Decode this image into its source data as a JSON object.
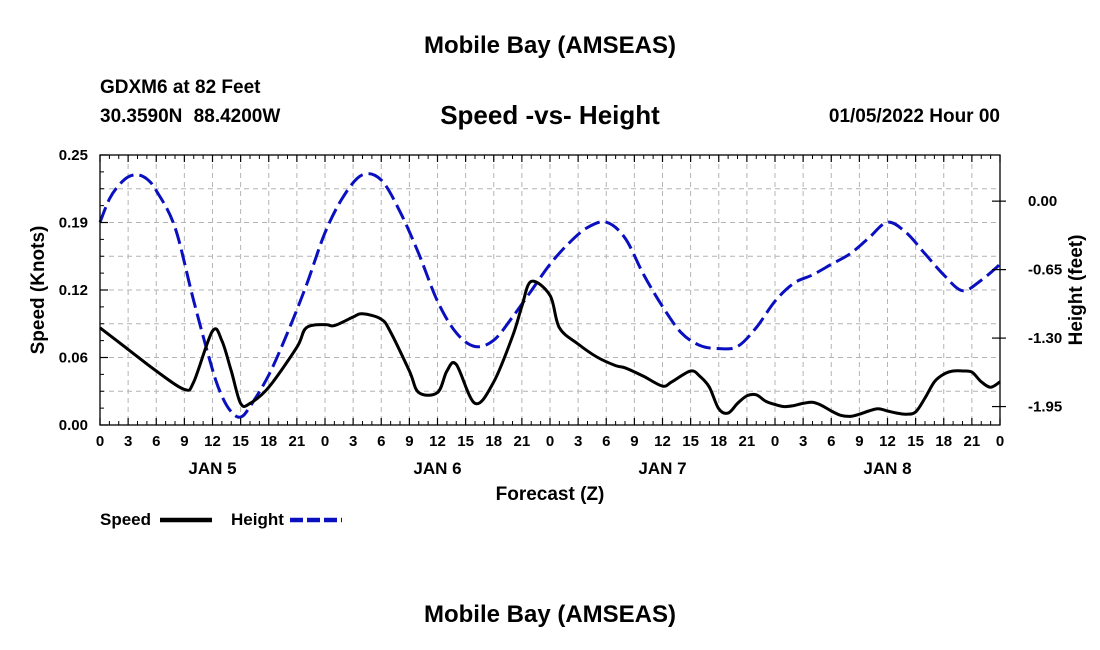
{
  "header": {
    "title": "Mobile Bay (AMSEAS)",
    "station": "GDXM6 at 82 Feet",
    "coords": "30.3590N 88.4200W",
    "date": "01/05/2022 Hour 00"
  },
  "footer": {
    "title": "Mobile Bay (AMSEAS)"
  },
  "chart_data": {
    "type": "line",
    "title": "Speed -vs- Height",
    "xlabel": "Forecast (Z)",
    "ylabel": "Speed (Knots)",
    "y2label": "Height (feet)",
    "grid": true,
    "legend_position": "bottom-left",
    "x_tick_labels": [
      "0",
      "3",
      "6",
      "9",
      "12",
      "15",
      "18",
      "21",
      "0",
      "3",
      "6",
      "9",
      "12",
      "15",
      "18",
      "21",
      "0",
      "3",
      "6",
      "9",
      "12",
      "15",
      "18",
      "21",
      "0",
      "3",
      "6",
      "9",
      "12",
      "15",
      "18",
      "21",
      "0"
    ],
    "day_labels": [
      {
        "label": "JAN 5",
        "hour": 12
      },
      {
        "label": "JAN 6",
        "hour": 36
      },
      {
        "label": "JAN 7",
        "hour": 60
      },
      {
        "label": "JAN 8",
        "hour": 84
      }
    ],
    "xlim": [
      0,
      96
    ],
    "ylim": [
      0,
      0.25
    ],
    "y_ticks": [
      "0.00",
      "0.06",
      "0.12",
      "0.19",
      "0.25"
    ],
    "y2lim": [
      -2.125,
      0.438
    ],
    "y2_ticks": [
      "-1.95",
      "-1.30",
      "-0.65",
      "0.00"
    ],
    "legend": [
      {
        "label": "Speed",
        "color": "#000000",
        "dash": "solid"
      },
      {
        "label": "Height",
        "color": "#0a10c0",
        "dash": "dashed"
      }
    ],
    "series": [
      {
        "name": "Speed",
        "axis": "left",
        "color": "#000000",
        "x": [
          0,
          3,
          6,
          9,
          10,
          12,
          13,
          14,
          15,
          16,
          18,
          21,
          22,
          24,
          25,
          27,
          28,
          30,
          31,
          33,
          34,
          36,
          37,
          38,
          40,
          42,
          44,
          45,
          46,
          48,
          49,
          51,
          53,
          55,
          56,
          58,
          60,
          61,
          63,
          64,
          65,
          66,
          67,
          68,
          69,
          70,
          71,
          72,
          73,
          74,
          75,
          76,
          77,
          78,
          79,
          80,
          81,
          82,
          83,
          84,
          85,
          86,
          87,
          88,
          89,
          90,
          91,
          92,
          93,
          94,
          95,
          96
        ],
        "values": [
          0.09,
          0.07,
          0.05,
          0.033,
          0.04,
          0.087,
          0.078,
          0.05,
          0.02,
          0.02,
          0.035,
          0.072,
          0.09,
          0.093,
          0.092,
          0.1,
          0.103,
          0.098,
          0.086,
          0.05,
          0.03,
          0.03,
          0.05,
          0.056,
          0.02,
          0.04,
          0.082,
          0.11,
          0.133,
          0.12,
          0.09,
          0.075,
          0.063,
          0.055,
          0.053,
          0.045,
          0.036,
          0.04,
          0.05,
          0.045,
          0.035,
          0.015,
          0.011,
          0.02,
          0.027,
          0.028,
          0.022,
          0.019,
          0.017,
          0.018,
          0.02,
          0.021,
          0.018,
          0.013,
          0.009,
          0.008,
          0.01,
          0.013,
          0.015,
          0.013,
          0.011,
          0.01,
          0.012,
          0.025,
          0.04,
          0.047,
          0.05,
          0.05,
          0.049,
          0.04,
          0.035,
          0.04
        ]
      },
      {
        "name": "Height",
        "axis": "right",
        "color": "#0a10c0",
        "x": [
          0,
          1,
          2,
          3,
          4,
          5,
          6,
          8,
          10,
          12,
          13,
          14,
          15,
          16,
          18,
          20,
          22,
          24,
          26,
          28,
          30,
          32,
          34,
          36,
          38,
          40,
          42,
          44,
          46,
          48,
          50,
          52,
          54,
          56,
          58,
          60,
          62,
          64,
          66,
          68,
          70,
          72,
          74,
          76,
          78,
          80,
          82,
          84,
          86,
          88,
          90,
          92,
          94,
          96
        ],
        "values": [
          -0.2,
          0.02,
          0.15,
          0.23,
          0.25,
          0.21,
          0.1,
          -0.25,
          -0.95,
          -1.6,
          -1.85,
          -2.0,
          -2.05,
          -1.95,
          -1.65,
          -1.25,
          -0.8,
          -0.3,
          0.05,
          0.25,
          0.2,
          -0.1,
          -0.5,
          -0.95,
          -1.25,
          -1.38,
          -1.32,
          -1.1,
          -0.85,
          -0.6,
          -0.4,
          -0.25,
          -0.2,
          -0.35,
          -0.7,
          -1.0,
          -1.25,
          -1.37,
          -1.4,
          -1.38,
          -1.2,
          -0.95,
          -0.78,
          -0.7,
          -0.6,
          -0.5,
          -0.35,
          -0.2,
          -0.3,
          -0.5,
          -0.7,
          -0.85,
          -0.75,
          -0.6
        ]
      }
    ]
  }
}
